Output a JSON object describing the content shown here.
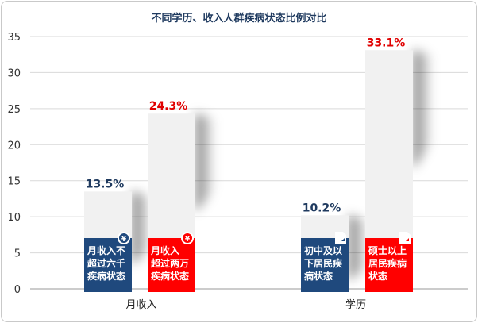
{
  "chart_data": {
    "type": "bar",
    "title": "不同学历、收入人群疾病状态比例对比",
    "xlabel": "",
    "ylabel": "",
    "ylim": [
      0,
      35
    ],
    "yticks": [
      0,
      5,
      10,
      15,
      20,
      25,
      30,
      35
    ],
    "grid": true,
    "categories": [
      "月收入",
      "学历"
    ],
    "bars": [
      {
        "category": "月收入",
        "value": 13.5,
        "label": "13.5%",
        "color": "#1f497d",
        "badge_icon": "yen-icon",
        "name_lines": [
          "月收入不",
          "超过六千",
          "疾病状态"
        ]
      },
      {
        "category": "月收入",
        "value": 24.3,
        "label": "24.3%",
        "color": "#ff0000",
        "badge_icon": "yen-icon",
        "name_lines": [
          "月收入",
          "超过两万",
          "疾病状态"
        ]
      },
      {
        "category": "学历",
        "value": 10.2,
        "label": "10.2%",
        "color": "#1f497d",
        "badge_icon": "document-icon",
        "name_lines": [
          "初中及以",
          "下居民疾",
          "病状态"
        ]
      },
      {
        "category": "学历",
        "value": 33.1,
        "label": "33.1%",
        "color": "#ff0000",
        "badge_icon": "document-icon",
        "name_lines": [
          "硕士以上",
          "居民疾病",
          "状态"
        ]
      }
    ]
  }
}
